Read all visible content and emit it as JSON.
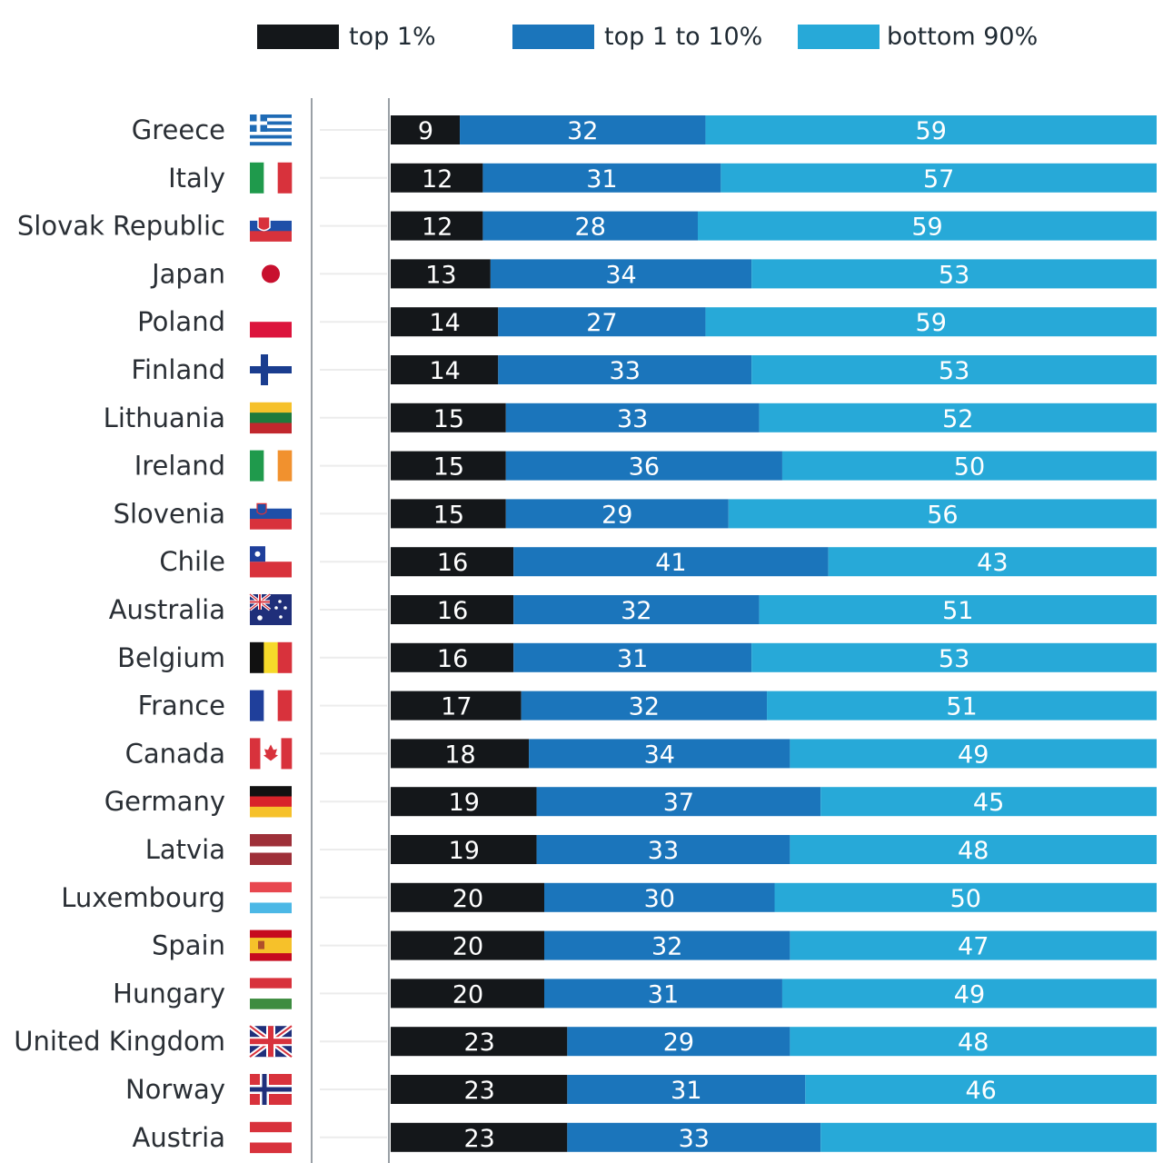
{
  "chart_data": {
    "type": "bar",
    "stacked": true,
    "orientation": "horizontal",
    "title": "",
    "xlabel": "",
    "ylabel": "",
    "xlim": [
      0,
      100
    ],
    "grid": false,
    "legend": {
      "placement": "top",
      "entries": [
        {
          "label": "top 1%",
          "color": "#14171a"
        },
        {
          "label": "top 1 to 10%",
          "color": "#1b75bb"
        },
        {
          "label": "bottom 90%",
          "color": "#27a9d8"
        }
      ]
    },
    "categories": [
      "Greece",
      "Italy",
      "Slovak Republic",
      "Japan",
      "Poland",
      "Finland",
      "Lithuania",
      "Ireland",
      "Slovenia",
      "Chile",
      "Australia",
      "Belgium",
      "France",
      "Canada",
      "Germany",
      "Latvia",
      "Luxembourg",
      "Spain",
      "Hungary",
      "United Kingdom",
      "Norway",
      "Austria"
    ],
    "flags": [
      "greece-flag-icon",
      "italy-flag-icon",
      "slovakia-flag-icon",
      "japan-flag-icon",
      "poland-flag-icon",
      "finland-flag-icon",
      "lithuania-flag-icon",
      "ireland-flag-icon",
      "slovenia-flag-icon",
      "chile-flag-icon",
      "australia-flag-icon",
      "belgium-flag-icon",
      "france-flag-icon",
      "canada-flag-icon",
      "germany-flag-icon",
      "latvia-flag-icon",
      "luxembourg-flag-icon",
      "spain-flag-icon",
      "hungary-flag-icon",
      "united-kingdom-flag-icon",
      "norway-flag-icon",
      "austria-flag-icon"
    ],
    "series": [
      {
        "name": "top 1%",
        "values": [
          9,
          12,
          12,
          13,
          14,
          14,
          15,
          15,
          15,
          16,
          16,
          16,
          17,
          18,
          19,
          19,
          20,
          20,
          20,
          23,
          23,
          23
        ]
      },
      {
        "name": "top 1 to 10%",
        "values": [
          32,
          31,
          28,
          34,
          27,
          33,
          33,
          36,
          29,
          41,
          32,
          31,
          32,
          34,
          37,
          33,
          30,
          32,
          31,
          29,
          31,
          33
        ]
      },
      {
        "name": "bottom 90%",
        "values": [
          59,
          57,
          59,
          53,
          59,
          53,
          52,
          50,
          56,
          43,
          51,
          53,
          51,
          49,
          45,
          48,
          50,
          47,
          49,
          48,
          46,
          null
        ]
      }
    ]
  }
}
